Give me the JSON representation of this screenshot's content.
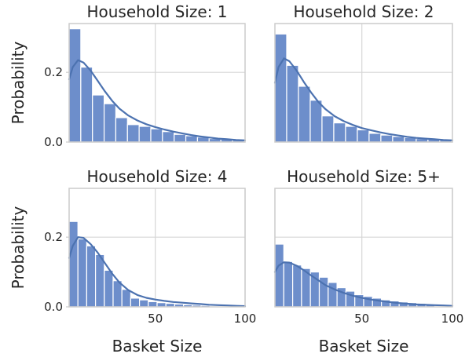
{
  "chart_data": [
    {
      "type": "bar",
      "title": "Household Size: 1",
      "xlabel": "",
      "ylabel": "Probability",
      "xlim": [
        2,
        100
      ],
      "ylim": [
        0,
        0.34
      ],
      "xticks": [],
      "yticks": [
        {
          "value": 0.0,
          "label": "0.0"
        },
        {
          "value": 0.2,
          "label": "0.2"
        }
      ],
      "grid": true,
      "bin_start": 2,
      "bin_width": 6.5,
      "values": [
        0.325,
        0.215,
        0.135,
        0.11,
        0.07,
        0.05,
        0.045,
        0.038,
        0.03,
        0.022,
        0.018,
        0.014,
        0.01,
        0.008,
        0.006
      ],
      "kde": {
        "x": [
          2,
          4,
          7,
          10,
          14,
          18,
          22,
          26,
          30,
          35,
          40,
          45,
          50,
          55,
          60,
          65,
          70,
          75,
          80,
          85,
          90,
          95,
          100
        ],
        "y": [
          0.18,
          0.215,
          0.235,
          0.228,
          0.205,
          0.175,
          0.145,
          0.118,
          0.096,
          0.076,
          0.062,
          0.051,
          0.043,
          0.036,
          0.03,
          0.025,
          0.02,
          0.016,
          0.013,
          0.01,
          0.008,
          0.006,
          0.005
        ]
      }
    },
    {
      "type": "bar",
      "title": "Household Size: 2",
      "xlabel": "",
      "ylabel": "",
      "xlim": [
        2,
        100
      ],
      "ylim": [
        0,
        0.34
      ],
      "xticks": [],
      "yticks": [],
      "grid": true,
      "bin_start": 2,
      "bin_width": 6.5,
      "values": [
        0.31,
        0.22,
        0.16,
        0.12,
        0.075,
        0.055,
        0.045,
        0.035,
        0.025,
        0.02,
        0.016,
        0.013,
        0.01,
        0.008,
        0.006
      ],
      "kde": {
        "x": [
          2,
          4,
          7,
          10,
          14,
          18,
          22,
          26,
          30,
          35,
          40,
          45,
          50,
          55,
          60,
          65,
          70,
          75,
          80,
          85,
          90,
          95,
          100
        ],
        "y": [
          0.17,
          0.215,
          0.24,
          0.232,
          0.205,
          0.172,
          0.142,
          0.115,
          0.094,
          0.074,
          0.06,
          0.049,
          0.04,
          0.034,
          0.028,
          0.023,
          0.019,
          0.015,
          0.012,
          0.01,
          0.008,
          0.006,
          0.005
        ]
      }
    },
    {
      "type": "bar",
      "title": "Household Size: 4",
      "xlabel": "Basket Size",
      "ylabel": "Probability",
      "xlim": [
        2,
        100
      ],
      "ylim": [
        0,
        0.34
      ],
      "xticks": [
        {
          "value": 50,
          "label": "50"
        },
        {
          "value": 100,
          "label": "100"
        }
      ],
      "yticks": [
        {
          "value": 0.0,
          "label": "0.0"
        },
        {
          "value": 0.2,
          "label": "0.2"
        }
      ],
      "grid": true,
      "bin_start": 2,
      "bin_width": 4.9,
      "values": [
        0.245,
        0.195,
        0.175,
        0.15,
        0.105,
        0.075,
        0.05,
        0.025,
        0.02,
        0.015,
        0.012,
        0.01,
        0.008,
        0.006,
        0.005,
        0.004
      ],
      "kde": {
        "x": [
          2,
          4,
          7,
          10,
          14,
          18,
          22,
          26,
          30,
          35,
          40,
          45,
          50,
          55,
          60,
          65,
          70,
          75,
          80,
          85,
          90,
          95,
          100
        ],
        "y": [
          0.14,
          0.175,
          0.2,
          0.198,
          0.18,
          0.155,
          0.125,
          0.095,
          0.07,
          0.048,
          0.034,
          0.026,
          0.021,
          0.017,
          0.014,
          0.012,
          0.01,
          0.008,
          0.006,
          0.005,
          0.004,
          0.003,
          0.002
        ]
      }
    },
    {
      "type": "bar",
      "title": "Household Size: 5+",
      "xlabel": "Basket Size",
      "ylabel": "",
      "xlim": [
        2,
        100
      ],
      "ylim": [
        0,
        0.34
      ],
      "xticks": [
        {
          "value": 50,
          "label": "50"
        },
        {
          "value": 100,
          "label": "100"
        }
      ],
      "yticks": [],
      "grid": true,
      "bin_start": 2,
      "bin_width": 4.9,
      "values": [
        0.18,
        0.13,
        0.12,
        0.11,
        0.1,
        0.085,
        0.07,
        0.055,
        0.045,
        0.035,
        0.03,
        0.025,
        0.02,
        0.017,
        0.014,
        0.012,
        0.01,
        0.008
      ],
      "kde": {
        "x": [
          2,
          4,
          7,
          10,
          14,
          18,
          22,
          26,
          30,
          35,
          40,
          45,
          50,
          55,
          60,
          65,
          70,
          75,
          80,
          85,
          90,
          95,
          100
        ],
        "y": [
          0.1,
          0.118,
          0.128,
          0.127,
          0.118,
          0.105,
          0.09,
          0.076,
          0.062,
          0.05,
          0.04,
          0.032,
          0.026,
          0.021,
          0.017,
          0.014,
          0.011,
          0.009,
          0.007,
          0.006,
          0.005,
          0.004,
          0.003
        ]
      }
    }
  ],
  "colors": {
    "bar_fill": "#6d8ecb",
    "kde_line": "#4c72b0",
    "frame": "#cccccc",
    "grid": "#d6d6d6",
    "text": "#262626"
  }
}
